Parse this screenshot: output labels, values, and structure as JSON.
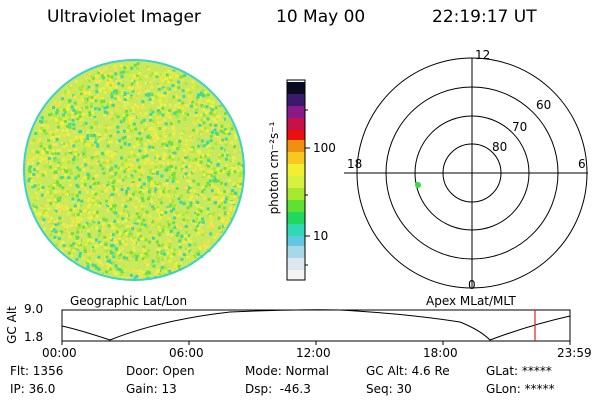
{
  "header": {
    "title": "Ultraviolet Imager",
    "date": "10 May 00",
    "time": "22:19:17 UT"
  },
  "colorbar": {
    "unit_label": "photon cm⁻²s⁻¹",
    "tick_labels": [
      "100",
      "10"
    ]
  },
  "polar_plot": {
    "mlt_labels": {
      "top": "12",
      "left": "18",
      "right": "6",
      "bottom": "0"
    },
    "lat_labels": [
      "60",
      "70",
      "80"
    ]
  },
  "altitude_panel": {
    "y_axis_label": "GC Alt",
    "y_ticks": [
      "9.0",
      "1.8"
    ],
    "left_caption": "Geographic Lat/Lon",
    "right_caption": "Apex MLat/MLT",
    "time_ticks": [
      "00:00",
      "06:00",
      "12:00",
      "18:00",
      "23:59"
    ]
  },
  "status": {
    "flt": "Flt: 1356",
    "ip": "IP: 36.0",
    "door": "Door: Open",
    "gain": "Gain: 13",
    "mode": "Mode: Normal",
    "dsp": "Dsp:  -46.3",
    "gc_alt": "GC Alt: 4.6 Re",
    "seq": "Seq: 30",
    "glat": "GLat: *****",
    "glon": "GLon: *****"
  }
}
